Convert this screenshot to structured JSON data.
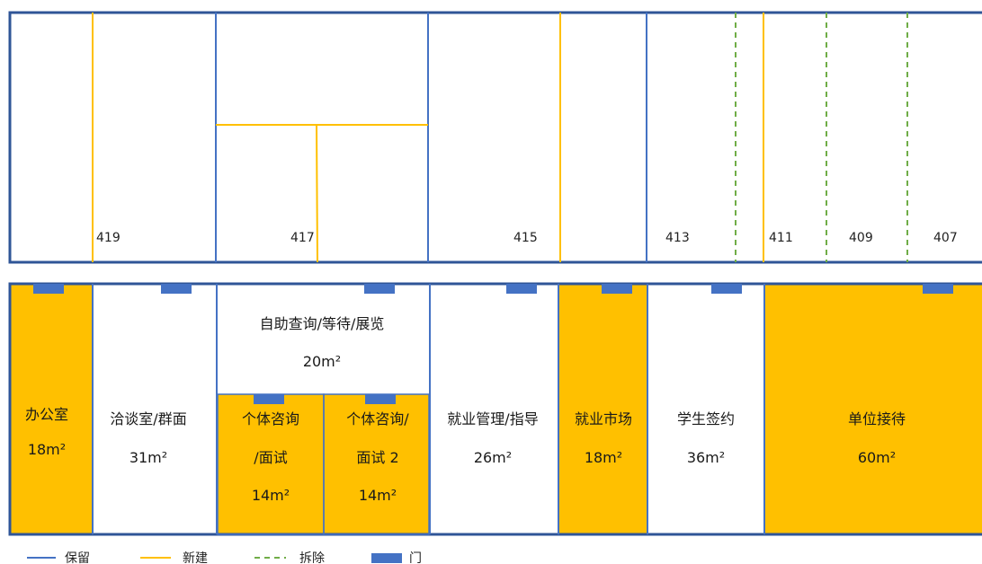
{
  "colors": {
    "retain": "#4472C4",
    "new": "#FFC000",
    "remove": "#70AD47",
    "door": "#4472C4",
    "room_fill_new": "#FFC000",
    "frame": "#2F5597"
  },
  "top_plan": {
    "room_numbers": [
      "419",
      "417",
      "415",
      "413",
      "411",
      "409",
      "407"
    ]
  },
  "bottom_plan": {
    "rooms": [
      {
        "name": "办公室",
        "area": "18m²"
      },
      {
        "name": "洽谈室/群面",
        "area": "31m²"
      },
      {
        "name": "自助查询/等待/展览",
        "area": "20m²"
      },
      {
        "name_line1": "个体咨询",
        "name_line2": "/面试",
        "area": "14m²"
      },
      {
        "name_line1": "个体咨询/",
        "name_line2": "面试 2",
        "area": "14m²"
      },
      {
        "name": "就业管理/指导",
        "area": "26m²"
      },
      {
        "name": "就业市场",
        "area": "18m²"
      },
      {
        "name": "学生签约",
        "area": "36m²"
      },
      {
        "name": "单位接待",
        "area": "60m²"
      }
    ]
  },
  "legend": {
    "retain": "保留",
    "new": "新建",
    "remove": "拆除",
    "door": "门"
  }
}
